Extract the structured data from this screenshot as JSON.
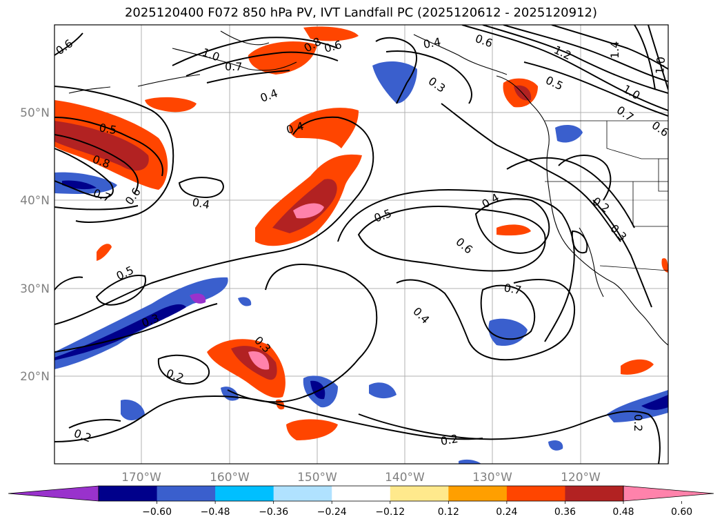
{
  "title": "2025120400 F072 850 hPa PV, IVT Landfall PC (2025120612 - 2025120912)",
  "latitude_labels": [
    "50°N",
    "40°N",
    "30°N",
    "20°N"
  ],
  "longitude_labels": [
    "170°W",
    "160°W",
    "150°W",
    "140°W",
    "130°W",
    "120°W"
  ],
  "colorbar": {
    "tick_labels": [
      "−0.60",
      "−0.48",
      "−0.36",
      "−0.24",
      "−0.12",
      "0.12",
      "0.24",
      "0.36",
      "0.48",
      "0.60"
    ],
    "colors": [
      "#9932cc",
      "#00008b",
      "#3a5fcd",
      "#00bfff",
      "#b0e2ff",
      "#ffffff",
      "#ffe98c",
      "#ff9f00",
      "#ff4500",
      "#b22222",
      "#ff82ab"
    ]
  },
  "contour_labels": [
    "0.6",
    "1.0",
    "0.7",
    "0.8",
    "0.6",
    "0.4",
    "0.6",
    "1.2",
    "1.4",
    "1.0",
    "0.4",
    "0.3",
    "0.5",
    "1.0",
    "0.7",
    "0.6",
    "0.5",
    "0.8",
    "0.7",
    "0.6",
    "0.4",
    "0.4",
    "0.4",
    "0.2",
    "0.3",
    "0.5",
    "0.6",
    "0.5",
    "0.7",
    "0.4",
    "0.3",
    "0.3",
    "0.2",
    "0.2",
    "0.2",
    "0.2"
  ]
}
